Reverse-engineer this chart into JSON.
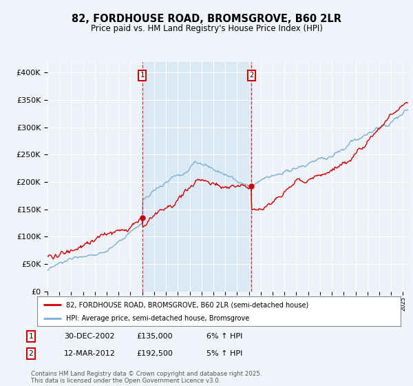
{
  "title": "82, FORDHOUSE ROAD, BROMSGROVE, B60 2LR",
  "subtitle": "Price paid vs. HM Land Registry's House Price Index (HPI)",
  "ylabel_ticks": [
    "£0",
    "£50K",
    "£100K",
    "£150K",
    "£200K",
    "£250K",
    "£300K",
    "£350K",
    "£400K"
  ],
  "ylim": [
    0,
    420000
  ],
  "xlim_start": 1995.0,
  "xlim_end": 2025.5,
  "sale1_date": 2002.99,
  "sale2_date": 2012.21,
  "sale1_price": 135000,
  "sale2_price": 192500,
  "hpi_color": "#7ab0d4",
  "hpi_fill_color": "#c8dff0",
  "price_color": "#cc0000",
  "vline_color": "#cc0000",
  "shade_color": "#d8e8f5",
  "legend_label1": "82, FORDHOUSE ROAD, BROMSGROVE, B60 2LR (semi-detached house)",
  "legend_label2": "HPI: Average price, semi-detached house, Bromsgrove",
  "table_row1": [
    "1",
    "30-DEC-2002",
    "£135,000",
    "6% ↑ HPI"
  ],
  "table_row2": [
    "2",
    "12-MAR-2012",
    "£192,500",
    "5% ↑ HPI"
  ],
  "footer": "Contains HM Land Registry data © Crown copyright and database right 2025.\nThis data is licensed under the Open Government Licence v3.0.",
  "background_color": "#f0f4fb",
  "plot_bg_color": "#edf1f8"
}
